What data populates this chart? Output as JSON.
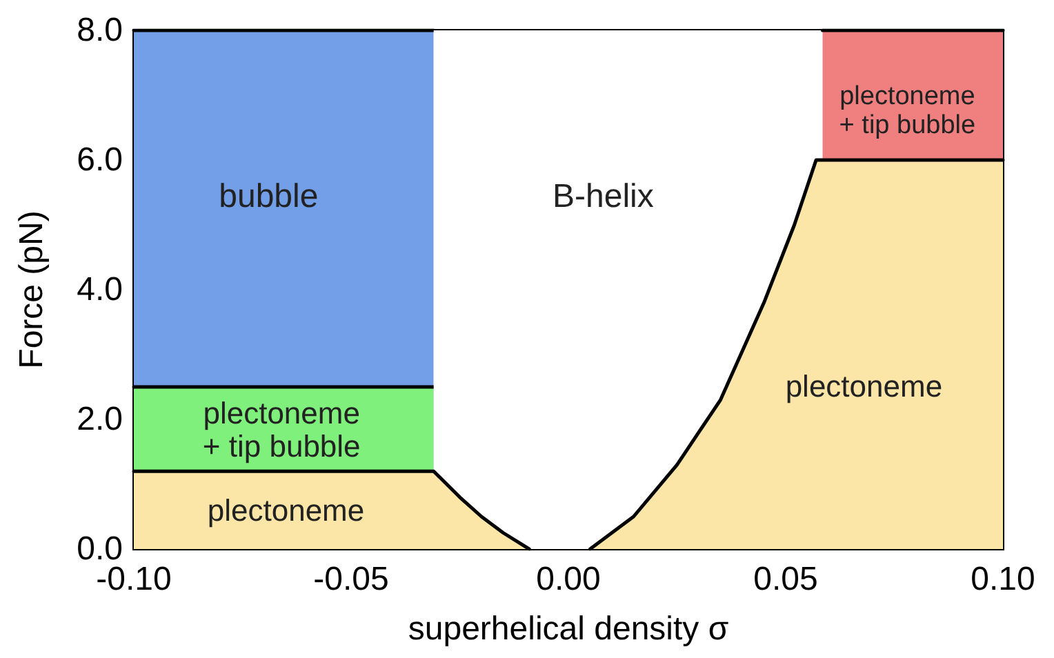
{
  "chart_data": {
    "type": "area",
    "xlabel": "superhelical density σ",
    "ylabel": "Force (pN)",
    "xlim": [
      -0.1,
      0.1
    ],
    "ylim": [
      0,
      8
    ],
    "xticks": [
      {
        "value": -0.1,
        "label": "-0.10"
      },
      {
        "value": -0.05,
        "label": "-0.05"
      },
      {
        "value": 0,
        "label": "0.00"
      },
      {
        "value": 0.05,
        "label": "0.05"
      },
      {
        "value": 0.1,
        "label": "0.10"
      }
    ],
    "yticks": [
      {
        "value": 0,
        "label": "0.0"
      },
      {
        "value": 2,
        "label": "2.0"
      },
      {
        "value": 4,
        "label": "4.0"
      },
      {
        "value": 6,
        "label": "6.0"
      },
      {
        "value": 8,
        "label": "8.0"
      }
    ],
    "grid": false,
    "series": [
      {
        "color": "#739fe8",
        "x": [
          -0.1,
          -0.031
        ],
        "values": [
          8,
          8
        ]
      },
      {
        "color": "#80f07c",
        "x": [
          -0.1,
          -0.031
        ],
        "values": [
          2.5,
          2.5
        ]
      },
      {
        "color": "#ffffff",
        "x": [
          -0.031,
          0.0585
        ],
        "values": [
          8,
          8
        ]
      },
      {
        "color": "#f08080",
        "x": [
          0.0585,
          0.1
        ],
        "values": [
          8,
          8
        ]
      },
      {
        "color": "#fbe6a8",
        "x": [
          -0.1,
          -0.031,
          -0.025,
          -0.02,
          -0.015,
          -0.009
        ],
        "values": [
          1.2,
          1.2,
          0.8,
          0.5,
          0.25,
          0
        ]
      },
      {
        "color": "#fbe6a8",
        "x": [
          0.005,
          0.015,
          0.025,
          0.035,
          0.045,
          0.052,
          0.057,
          0.0585,
          0.1
        ],
        "values": [
          0,
          0.5,
          1.3,
          2.3,
          3.8,
          5.0,
          6.0,
          6.0,
          6.0
        ]
      }
    ],
    "annotations": [
      "bubble",
      "plectoneme\n+ tip bubble",
      "plectoneme",
      "B-helix",
      "plectoneme",
      "plectoneme\n+ tip bubble"
    ]
  }
}
